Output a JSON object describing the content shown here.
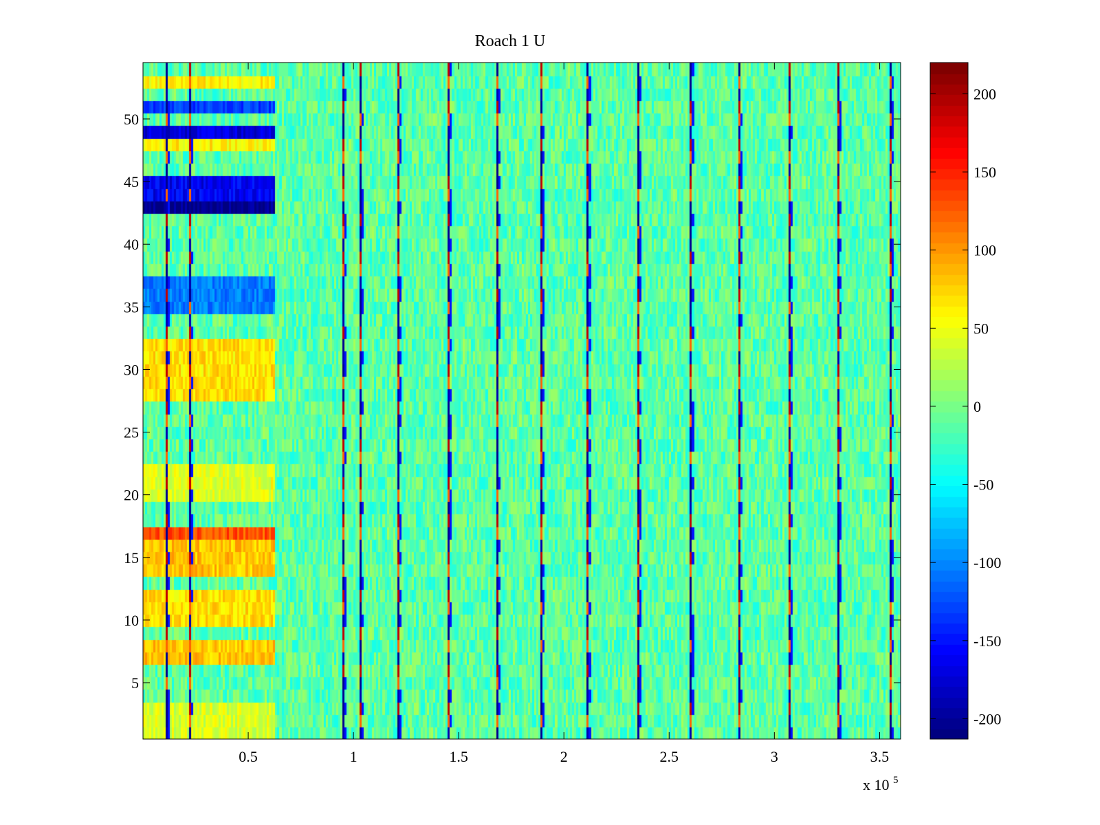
{
  "chart_data": {
    "type": "heatmap",
    "title": "Roach 1 U",
    "xlabel": "",
    "ylabel": "",
    "x_exponent_label": "x 10",
    "x_exponent_power": "5",
    "xlim": [
      0,
      360000
    ],
    "ylim": [
      0.5,
      54.5
    ],
    "rows": 54,
    "columns": 360,
    "x_ticks": [
      {
        "value": 0.5,
        "label": "0.5"
      },
      {
        "value": 1,
        "label": "1"
      },
      {
        "value": 1.5,
        "label": "1.5"
      },
      {
        "value": 2,
        "label": "2"
      },
      {
        "value": 2.5,
        "label": "2.5"
      },
      {
        "value": 3,
        "label": "3"
      },
      {
        "value": 3.5,
        "label": "3.5"
      }
    ],
    "y_ticks": [
      {
        "value": 5,
        "label": "5"
      },
      {
        "value": 10,
        "label": "10"
      },
      {
        "value": 15,
        "label": "15"
      },
      {
        "value": 20,
        "label": "20"
      },
      {
        "value": 25,
        "label": "25"
      },
      {
        "value": 30,
        "label": "30"
      },
      {
        "value": 35,
        "label": "35"
      },
      {
        "value": 40,
        "label": "40"
      },
      {
        "value": 45,
        "label": "45"
      },
      {
        "value": 50,
        "label": "50"
      }
    ],
    "colorbar": {
      "colormap": "jet",
      "range": [
        -213,
        220
      ],
      "ticks": [
        {
          "value": 200,
          "label": "200"
        },
        {
          "value": 150,
          "label": "150"
        },
        {
          "value": 100,
          "label": "100"
        },
        {
          "value": 50,
          "label": "50"
        },
        {
          "value": 0,
          "label": "0"
        },
        {
          "value": -50,
          "label": "-50"
        },
        {
          "value": -100,
          "label": "-100"
        },
        {
          "value": -150,
          "label": "-150"
        },
        {
          "value": -200,
          "label": "-200"
        }
      ]
    },
    "baseline_value": -12,
    "noise_amplitude": 30,
    "early_segment_end_x": 63000,
    "spike_columns_x": [
      11000,
      22000,
      95000,
      103000,
      121000,
      145000,
      168000,
      189000,
      211000,
      235000,
      260000,
      283000,
      307000,
      330000,
      355000
    ],
    "row_patterns_early_segment": [
      {
        "rows": [
          43,
          43
        ],
        "value": -205
      },
      {
        "rows": [
          44,
          45
        ],
        "value": -160
      },
      {
        "rows": [
          49,
          49
        ],
        "value": -170
      },
      {
        "rows": [
          51,
          51
        ],
        "value": -130
      },
      {
        "rows": [
          35,
          37
        ],
        "value": -105
      },
      {
        "rows": [
          17,
          17
        ],
        "value": 130
      },
      {
        "rows": [
          14,
          16
        ],
        "value": 80
      },
      {
        "rows": [
          10,
          12
        ],
        "value": 70
      },
      {
        "rows": [
          7,
          8
        ],
        "value": 80
      },
      {
        "rows": [
          28,
          32
        ],
        "value": 70
      },
      {
        "rows": [
          20,
          22
        ],
        "value": 45
      },
      {
        "rows": [
          1,
          3
        ],
        "value": 40
      },
      {
        "rows": [
          48,
          48
        ],
        "value": 60
      },
      {
        "rows": [
          53,
          53
        ],
        "value": 60
      }
    ]
  }
}
